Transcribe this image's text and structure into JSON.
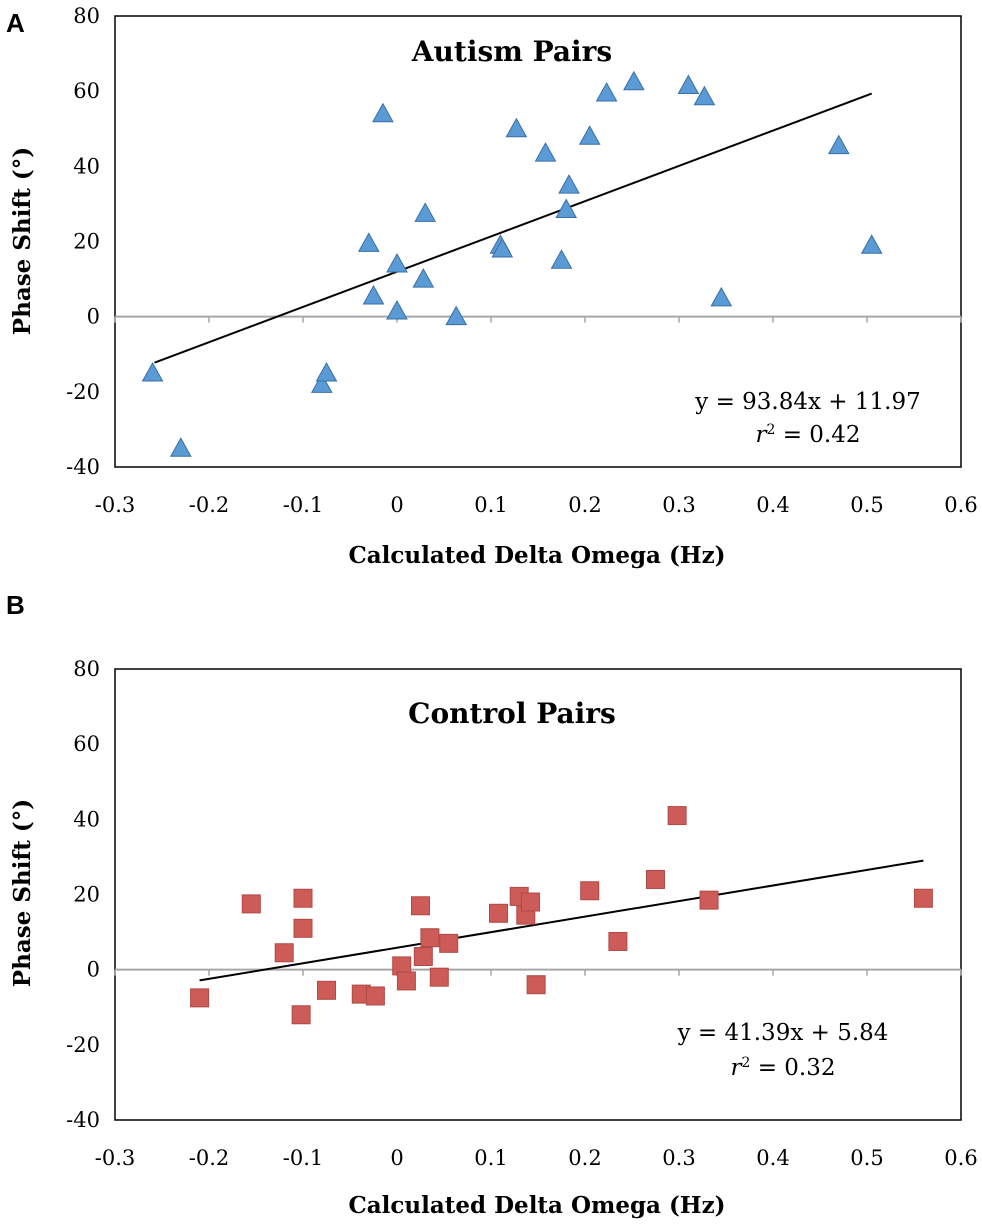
{
  "chart_data": [
    {
      "type": "scatter",
      "panel_label": "A",
      "title": "Autism Pairs",
      "xlabel": "Calculated Delta Omega (Hz)",
      "ylabel": "Phase Shift (°)",
      "xlim": [
        -0.3,
        0.6
      ],
      "ylim": [
        -40,
        80
      ],
      "x_ticks": [
        "-0.3",
        "-0.2",
        "-0.1",
        "0",
        "0.1",
        "0.2",
        "0.3",
        "0.4",
        "0.5",
        "0.6"
      ],
      "y_ticks": [
        "80",
        "60",
        "40",
        "20",
        "0",
        "-20",
        "-40"
      ],
      "marker": "triangle",
      "marker_color": "#5b9bd5",
      "x": [
        -0.26,
        -0.23,
        -0.08,
        -0.075,
        -0.03,
        -0.025,
        -0.015,
        0.0,
        0.0,
        0.028,
        0.03,
        0.063,
        0.11,
        0.112,
        0.127,
        0.158,
        0.175,
        0.18,
        0.183,
        0.205,
        0.223,
        0.252,
        0.31,
        0.327,
        0.345,
        0.47,
        0.505
      ],
      "y": [
        -15,
        -35,
        -18,
        -15,
        19.5,
        5.5,
        54,
        14,
        1.5,
        10,
        27.5,
        0,
        19,
        18,
        50,
        43.5,
        15,
        28.5,
        35,
        48,
        59.5,
        62.5,
        61.5,
        58.5,
        5,
        45.5,
        19
      ],
      "trendline": {
        "slope": 93.84,
        "intercept": 11.97,
        "x_range": [
          -0.258,
          0.505
        ]
      },
      "equation": "y = 93.84x + 11.97",
      "r2_var": "r",
      "r2_sup": "2",
      "r2_value": " = 0.42"
    },
    {
      "type": "scatter",
      "panel_label": "B",
      "title": "Control Pairs",
      "xlabel": "Calculated Delta Omega (Hz)",
      "ylabel": "Phase Shift (°)",
      "xlim": [
        -0.3,
        0.6
      ],
      "ylim": [
        -40,
        80
      ],
      "x_ticks": [
        "-0.3",
        "-0.2",
        "-0.1",
        "0",
        "0.1",
        "0.2",
        "0.3",
        "0.4",
        "0.5",
        "0.6"
      ],
      "y_ticks": [
        "80",
        "60",
        "40",
        "20",
        "0",
        "-20",
        "-40"
      ],
      "marker": "square",
      "marker_color": "#cd5b57",
      "x": [
        -0.21,
        -0.155,
        -0.12,
        -0.1,
        -0.1,
        -0.102,
        -0.075,
        -0.038,
        -0.023,
        0.005,
        0.01,
        0.025,
        0.028,
        0.035,
        0.045,
        0.055,
        0.108,
        0.13,
        0.137,
        0.142,
        0.148,
        0.205,
        0.235,
        0.275,
        0.298,
        0.332,
        0.56
      ],
      "y": [
        -7.5,
        17.5,
        4.5,
        19,
        11,
        -12,
        -5.5,
        -6.5,
        -7,
        1,
        -3,
        17,
        3.5,
        8.5,
        -2,
        7,
        15,
        19.5,
        14.5,
        18,
        -4,
        21,
        7.5,
        24,
        41,
        18.5,
        19
      ],
      "trendline": {
        "slope": 41.39,
        "intercept": 5.84,
        "x_range": [
          -0.21,
          0.56
        ]
      },
      "equation": "y = 41.39x + 5.84",
      "r2_var": "r",
      "r2_sup": "2",
      "r2_value": " = 0.32"
    }
  ]
}
